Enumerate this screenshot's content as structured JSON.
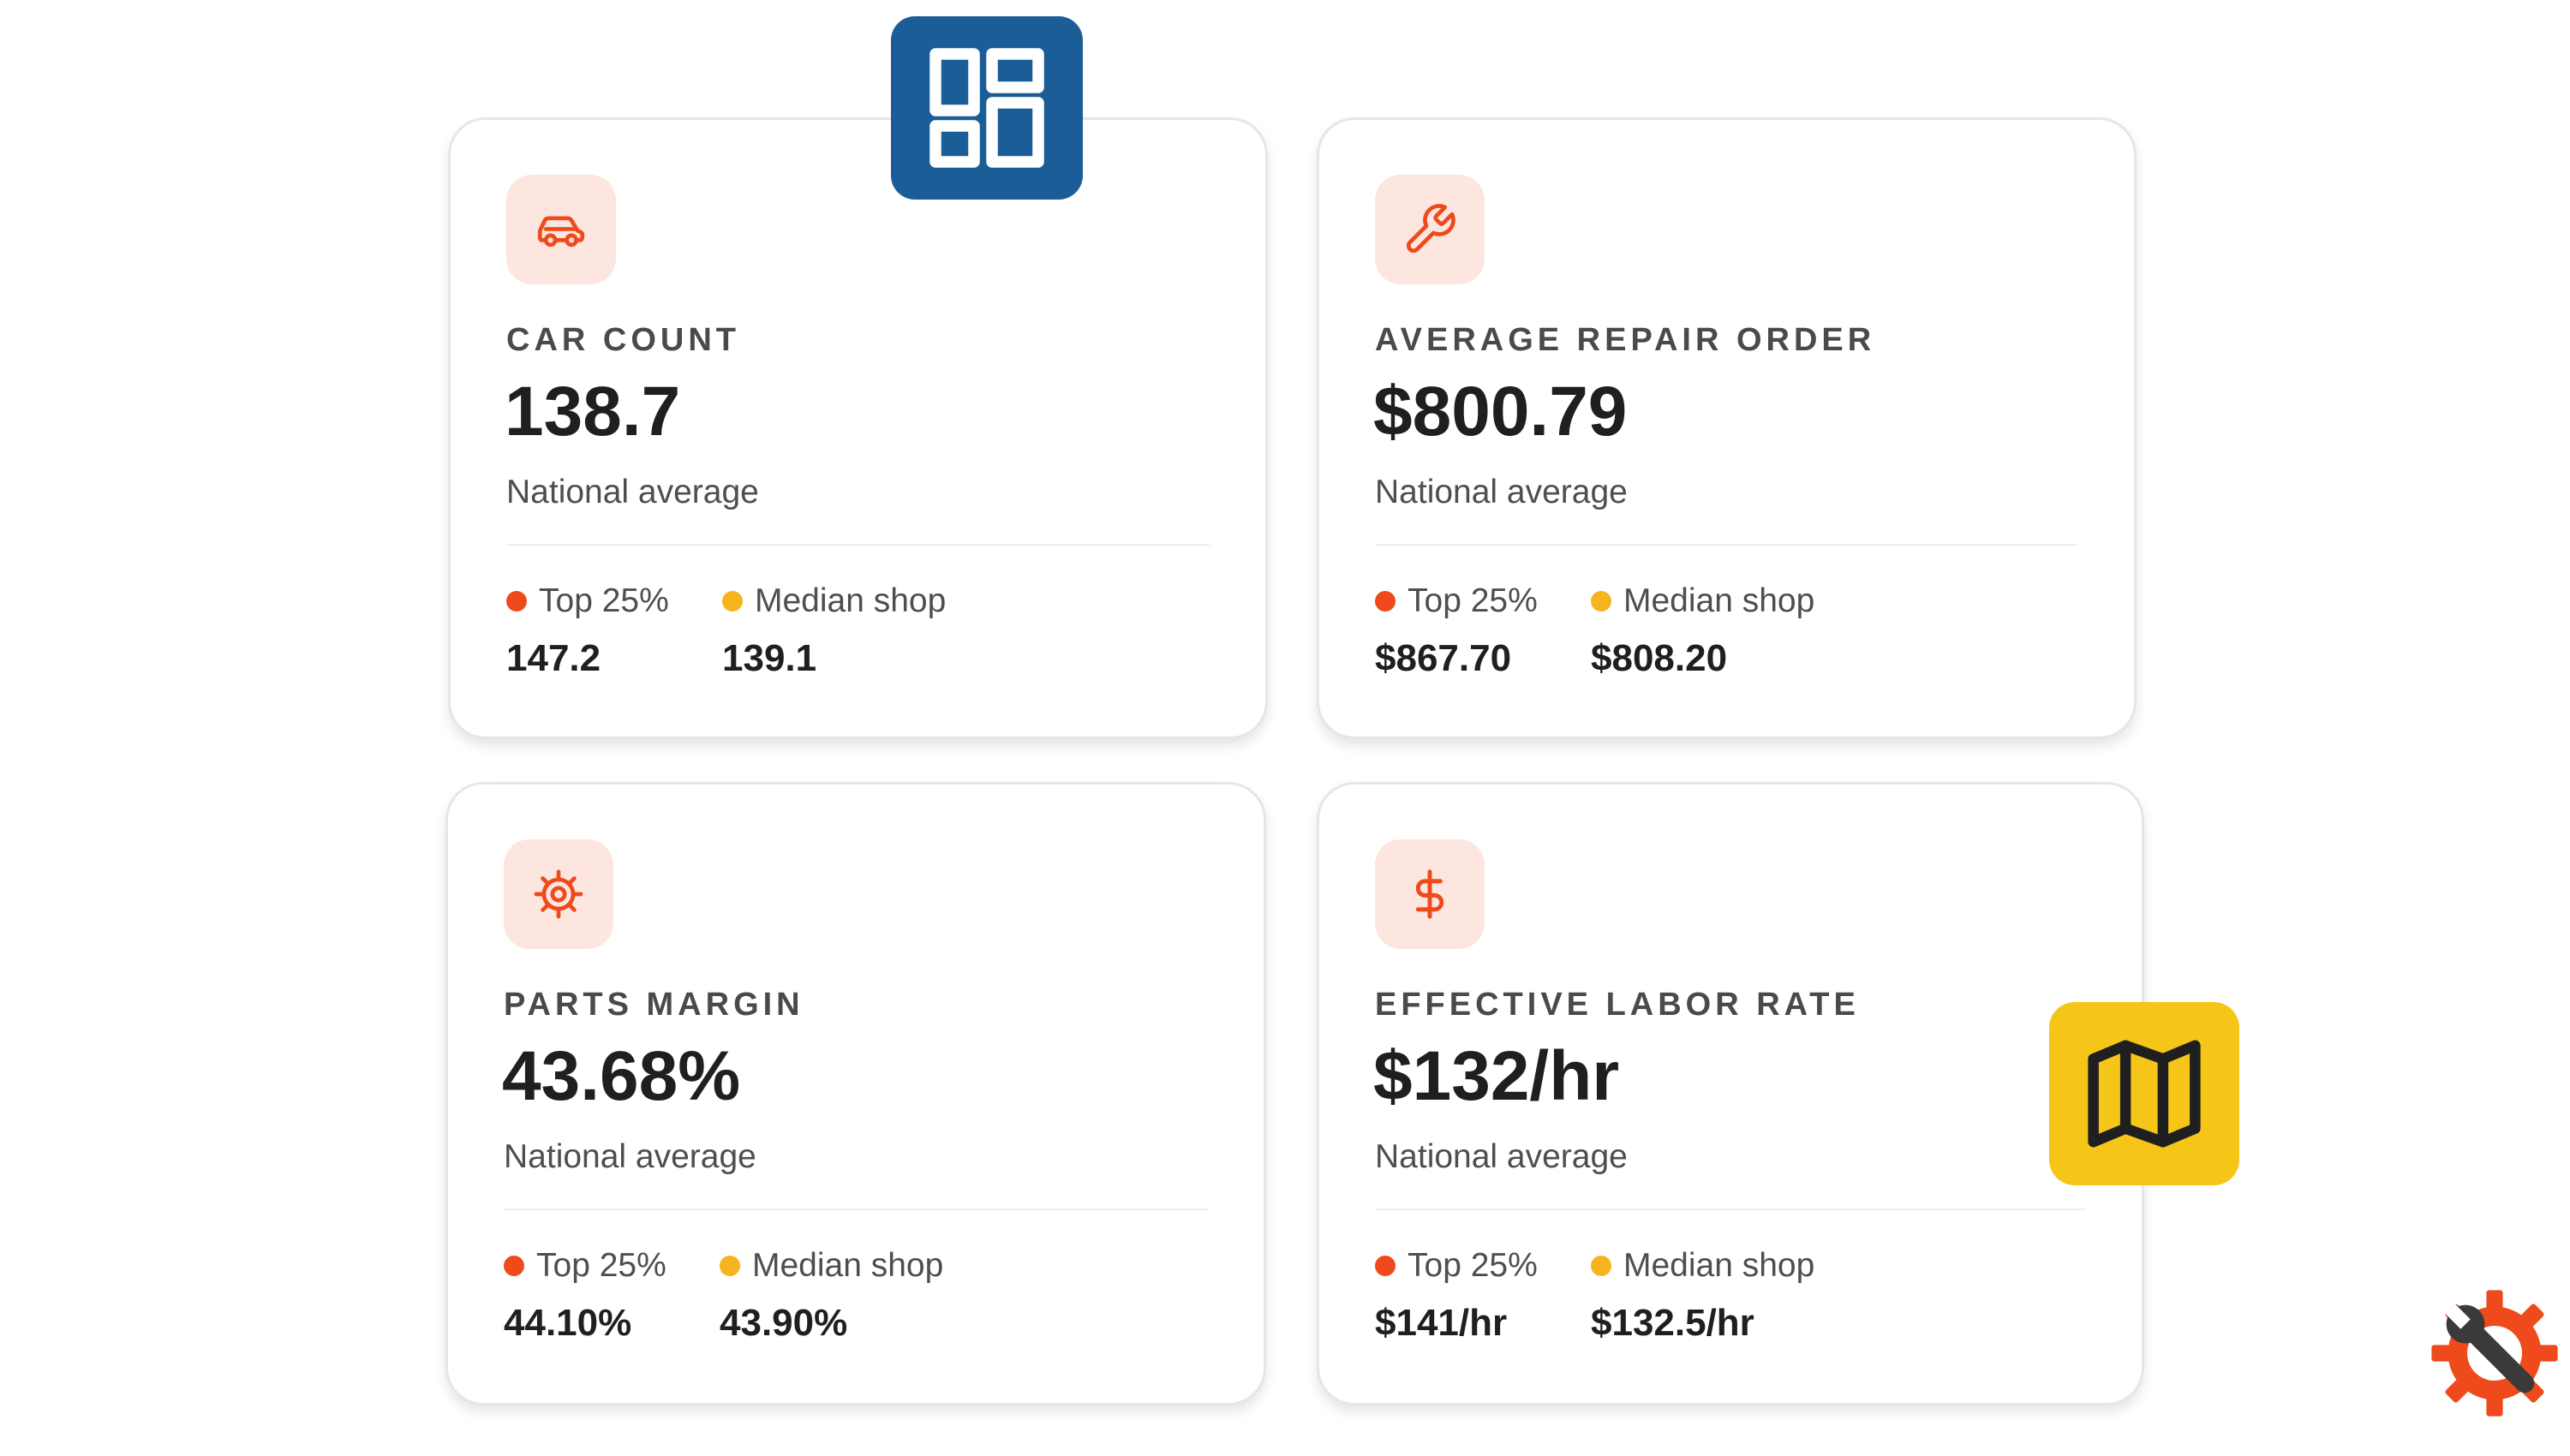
{
  "metrics": [
    {
      "id": "car",
      "icon": "car-icon",
      "label": "CAR COUNT",
      "value": "138.7",
      "sublabel": "National average",
      "top_label": "Top 25%",
      "top_value": "147.2",
      "median_label": "Median shop",
      "median_value": "139.1"
    },
    {
      "id": "aro",
      "icon": "wrench-icon",
      "label": "AVERAGE REPAIR ORDER",
      "value": "$800.79",
      "sublabel": "National average",
      "top_label": "Top 25%",
      "top_value": "$867.70",
      "median_label": "Median shop",
      "median_value": "$808.20"
    },
    {
      "id": "parts",
      "icon": "gear-icon",
      "label": "PARTS MARGIN",
      "value": "43.68%",
      "sublabel": "National average",
      "top_label": "Top 25%",
      "top_value": "44.10%",
      "median_label": "Median shop",
      "median_value": "43.90%"
    },
    {
      "id": "labor",
      "icon": "dollar-icon",
      "label": "EFFECTIVE LABOR RATE",
      "value": "$132/hr",
      "sublabel": "National average",
      "top_label": "Top 25%",
      "top_value": "$141/hr",
      "median_label": "Median shop",
      "median_value": "$132.5/hr"
    }
  ],
  "overlays": {
    "dashboard_badge_icon": "dashboard-grid-icon",
    "map_badge_icon": "map-icon",
    "tool_badge_icon": "gear-wrench-icon"
  },
  "colors": {
    "accent": "#ee4a1b",
    "icon_tile": "#fde6df",
    "top_dot": "#ee4a1b",
    "median_dot": "#f6b51e",
    "dashboard_badge": "#1b5e97",
    "map_badge": "#f5c518"
  }
}
